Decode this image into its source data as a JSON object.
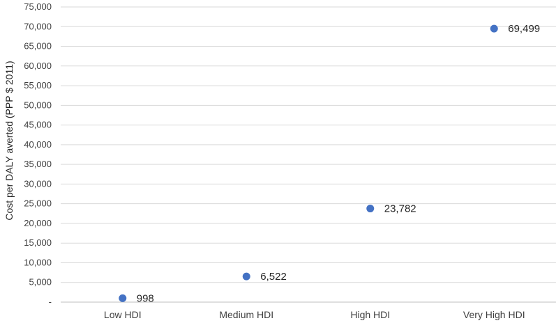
{
  "chart_data": {
    "type": "scatter",
    "categories": [
      "Low HDI",
      "Medium HDI",
      "High HDI",
      "Very High HDI"
    ],
    "values": [
      998,
      6522,
      23782,
      69499
    ],
    "data_labels": [
      "998",
      "6,522",
      "23,782",
      "69,499"
    ],
    "ylabel": "Cost per DALY averted (PPP $ 2011)",
    "ylim": [
      0,
      75000
    ],
    "yticks": [
      0,
      5000,
      10000,
      15000,
      20000,
      25000,
      30000,
      35000,
      40000,
      45000,
      50000,
      55000,
      60000,
      65000,
      70000,
      75000
    ],
    "ytick_labels": [
      "-",
      "5,000",
      "10,000",
      "15,000",
      "20,000",
      "25,000",
      "30,000",
      "35,000",
      "40,000",
      "45,000",
      "50,000",
      "55,000",
      "60,000",
      "65,000",
      "70,000",
      "75,000"
    ],
    "grid": true,
    "marker_color": "#4472c4"
  }
}
